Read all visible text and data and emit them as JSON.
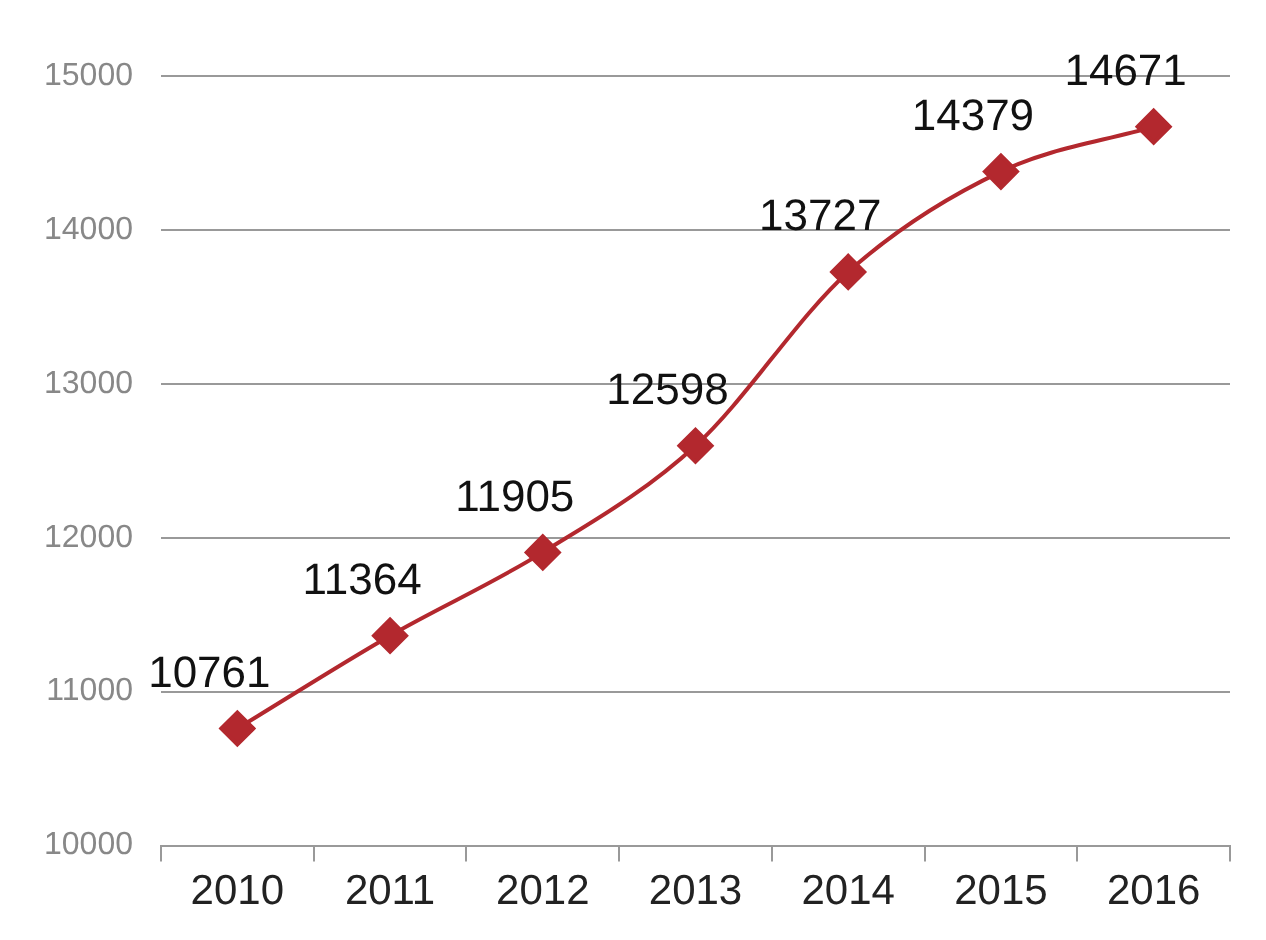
{
  "chart_data": {
    "type": "line",
    "categories": [
      "2010",
      "2011",
      "2012",
      "2013",
      "2014",
      "2015",
      "2016"
    ],
    "series": [
      {
        "color": "#b3282e",
        "values": [
          10761,
          11364,
          11905,
          12598,
          13727,
          14379,
          14671
        ]
      }
    ],
    "ylim": [
      10000,
      15000
    ],
    "yticks": [
      10000,
      11000,
      12000,
      13000,
      14000,
      15000
    ],
    "grid": "y",
    "legend": false,
    "marker": "diamond",
    "line_style": "solid",
    "data_labels": true
  }
}
